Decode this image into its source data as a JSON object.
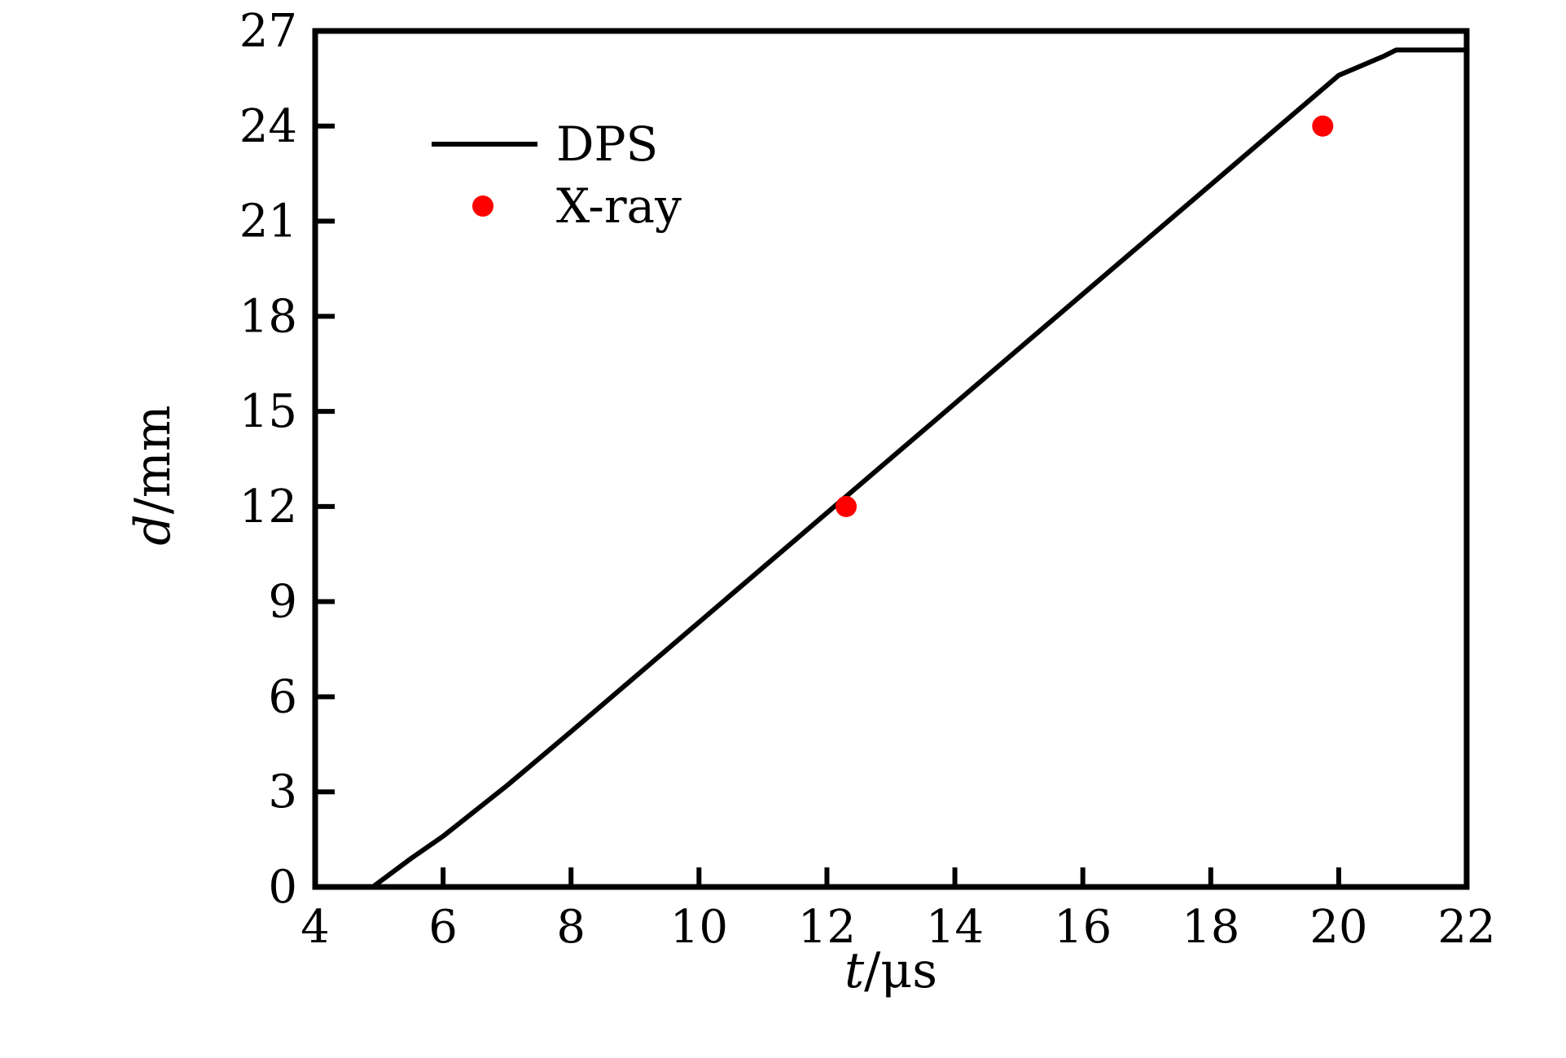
{
  "chart_data": {
    "type": "line",
    "xlabel_var": "t",
    "xlabel_unit": "/μs",
    "ylabel_var": "d",
    "ylabel_unit": "/mm",
    "xlim": [
      4,
      22
    ],
    "ylim": [
      0,
      27
    ],
    "xticks": [
      "4",
      "6",
      "8",
      "10",
      "12",
      "14",
      "16",
      "18",
      "20",
      "22"
    ],
    "yticks": [
      "0",
      "3",
      "6",
      "9",
      "12",
      "15",
      "18",
      "21",
      "24",
      "27"
    ],
    "legend_position": "top-left",
    "series": [
      {
        "name": "DPS",
        "kind": "line",
        "color": "#000000",
        "x": [
          4.9,
          5.5,
          6.0,
          7.0,
          8.0,
          10.0,
          12.0,
          14.0,
          16.0,
          18.0,
          20.0,
          20.7,
          20.9,
          21.1,
          22.0
        ],
        "y": [
          0.0,
          0.9,
          1.6,
          3.2,
          4.9,
          8.35,
          11.8,
          15.25,
          18.7,
          22.15,
          25.6,
          26.2,
          26.4,
          26.4,
          26.4
        ]
      },
      {
        "name": "X-ray",
        "kind": "scatter",
        "color": "#ff0000",
        "x": [
          12.3,
          19.75
        ],
        "y": [
          12.0,
          24.0
        ]
      }
    ]
  }
}
